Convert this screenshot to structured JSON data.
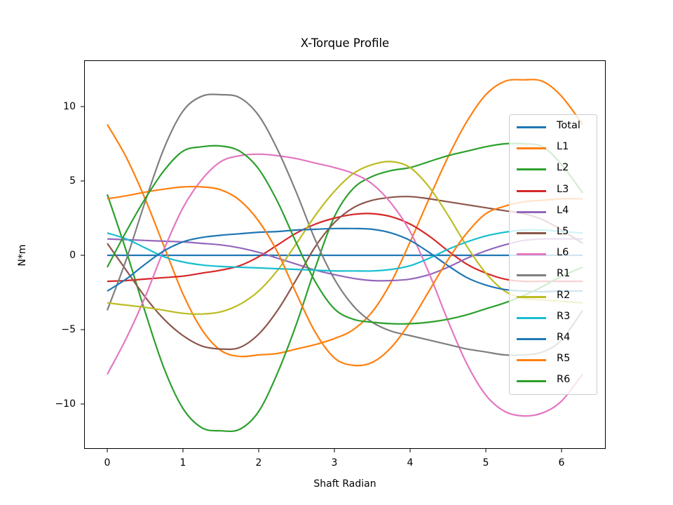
{
  "chart_data": {
    "type": "line",
    "title": "X-Torque Profile",
    "xlabel": "Shaft Radian",
    "ylabel": "N*m",
    "xlim": [
      -0.31,
      6.59
    ],
    "ylim": [
      -13.1,
      13.0
    ],
    "xticks": [
      0,
      1,
      2,
      3,
      4,
      5,
      6
    ],
    "xtick_labels": [
      "0",
      "1",
      "2",
      "3",
      "4",
      "5",
      "6"
    ],
    "yticks": [
      10,
      5,
      0,
      -5,
      -10
    ],
    "ytick_labels": [
      "10",
      "5",
      "0",
      "−5",
      "−10"
    ],
    "grid": false,
    "legend_position": "center right",
    "x": [
      0,
      0.25,
      0.5,
      0.75,
      1.0,
      1.25,
      1.5,
      1.75,
      2.0,
      2.25,
      2.5,
      2.75,
      3.0,
      3.25,
      3.5,
      3.75,
      4.0,
      4.25,
      4.5,
      4.75,
      5.0,
      5.25,
      5.5,
      5.75,
      6.0,
      6.28
    ],
    "series": [
      {
        "name": "Total",
        "color": "#1f77b4",
        "values": [
          0,
          0,
          0,
          0,
          0,
          0,
          0,
          0,
          0,
          0,
          0,
          0,
          0,
          0,
          0,
          0,
          0,
          0,
          0,
          0,
          0,
          0,
          0,
          0,
          0,
          0
        ]
      },
      {
        "name": "L1",
        "color": "#ff7f0e",
        "values": [
          8.8,
          6.6,
          3.8,
          0.6,
          -2.6,
          -5.0,
          -6.4,
          -6.8,
          -6.7,
          -6.6,
          -6.3,
          -6.0,
          -5.6,
          -5.0,
          -3.8,
          -1.8,
          0.9,
          3.8,
          6.6,
          9.0,
          10.8,
          11.7,
          11.8,
          11.7,
          10.7,
          8.8
        ]
      },
      {
        "name": "L2",
        "color": "#2ca02c",
        "values": [
          4.1,
          0.3,
          -3.8,
          -7.6,
          -10.3,
          -11.6,
          -11.8,
          -11.7,
          -10.5,
          -7.9,
          -4.6,
          -0.8,
          2.6,
          4.5,
          5.3,
          5.7,
          5.9,
          6.3,
          6.7,
          7.0,
          7.3,
          7.5,
          7.5,
          7.3,
          6.1,
          4.2
        ]
      },
      {
        "name": "L3",
        "color": "#d62728",
        "values": [
          -1.75,
          -1.7,
          -1.6,
          -1.5,
          -1.4,
          -1.2,
          -1.0,
          -0.7,
          -0.1,
          0.7,
          1.5,
          2.1,
          2.5,
          2.75,
          2.8,
          2.6,
          2.1,
          1.3,
          0.3,
          -0.6,
          -1.2,
          -1.6,
          -1.75,
          -1.75,
          -1.75,
          -1.75
        ]
      },
      {
        "name": "L4",
        "color": "#9467bd",
        "values": [
          1.1,
          1.05,
          1.0,
          0.95,
          0.9,
          0.8,
          0.7,
          0.5,
          0.2,
          -0.2,
          -0.6,
          -1.0,
          -1.3,
          -1.55,
          -1.7,
          -1.7,
          -1.6,
          -1.3,
          -0.8,
          -0.2,
          0.3,
          0.7,
          1.0,
          1.1,
          1.1,
          1.1
        ]
      },
      {
        "name": "L5",
        "color": "#8c564b",
        "values": [
          0.8,
          -1.0,
          -2.8,
          -4.3,
          -5.4,
          -6.1,
          -6.3,
          -6.2,
          -5.3,
          -3.7,
          -1.6,
          0.6,
          2.2,
          3.2,
          3.7,
          3.9,
          3.95,
          3.8,
          3.6,
          3.4,
          3.2,
          3.0,
          2.8,
          2.4,
          1.7,
          0.8
        ]
      },
      {
        "name": "L6",
        "color": "#e377c2",
        "values": [
          -8.0,
          -5.6,
          -2.8,
          0.4,
          3.2,
          5.1,
          6.3,
          6.7,
          6.8,
          6.7,
          6.5,
          6.2,
          5.9,
          5.5,
          4.8,
          3.5,
          1.6,
          -1.2,
          -4.4,
          -7.3,
          -9.4,
          -10.5,
          -10.8,
          -10.6,
          -9.8,
          -8.0
        ]
      },
      {
        "name": "R1",
        "color": "#7f7f7f",
        "values": [
          -3.7,
          -0.3,
          3.6,
          7.2,
          9.7,
          10.7,
          10.8,
          10.6,
          9.4,
          7.1,
          4.2,
          1.0,
          -1.6,
          -3.4,
          -4.5,
          -5.1,
          -5.4,
          -5.7,
          -6.0,
          -6.3,
          -6.5,
          -6.7,
          -6.7,
          -6.5,
          -5.7,
          -3.7
        ]
      },
      {
        "name": "R2",
        "color": "#bcbd22",
        "values": [
          -3.2,
          -3.35,
          -3.5,
          -3.7,
          -3.9,
          -3.95,
          -3.8,
          -3.3,
          -2.4,
          -1.0,
          0.8,
          2.7,
          4.3,
          5.5,
          6.1,
          6.3,
          5.9,
          4.6,
          2.7,
          0.6,
          -1.2,
          -2.4,
          -2.9,
          -3.0,
          -3.1,
          -3.2
        ]
      },
      {
        "name": "R3",
        "color": "#17becf",
        "values": [
          1.5,
          1.1,
          0.5,
          -0.1,
          -0.45,
          -0.65,
          -0.75,
          -0.8,
          -0.85,
          -0.9,
          -0.95,
          -1.0,
          -1.05,
          -1.05,
          -1.05,
          -0.95,
          -0.7,
          -0.2,
          0.4,
          0.9,
          1.3,
          1.55,
          1.7,
          1.7,
          1.6,
          1.5
        ]
      },
      {
        "name": "R4",
        "color": "#1f77b4",
        "values": [
          -2.4,
          -1.6,
          -0.6,
          0.3,
          0.9,
          1.2,
          1.35,
          1.45,
          1.55,
          1.6,
          1.7,
          1.75,
          1.8,
          1.8,
          1.75,
          1.5,
          1.0,
          0.2,
          -0.7,
          -1.5,
          -2.0,
          -2.3,
          -2.4,
          -2.45,
          -2.4,
          -2.4
        ]
      },
      {
        "name": "R5",
        "color": "#ff7f0e",
        "values": [
          3.8,
          4.0,
          4.25,
          4.45,
          4.6,
          4.6,
          4.4,
          3.7,
          2.3,
          0.2,
          -2.6,
          -5.2,
          -6.9,
          -7.4,
          -7.2,
          -6.2,
          -4.5,
          -2.4,
          -0.3,
          1.5,
          2.8,
          3.3,
          3.6,
          3.7,
          3.8,
          3.8
        ]
      },
      {
        "name": "R6",
        "color": "#2ca02c",
        "values": [
          -0.8,
          1.6,
          3.8,
          5.7,
          7.0,
          7.3,
          7.35,
          7.0,
          5.8,
          3.6,
          0.8,
          -1.8,
          -3.6,
          -4.3,
          -4.5,
          -4.6,
          -4.6,
          -4.5,
          -4.3,
          -4.0,
          -3.6,
          -3.2,
          -2.7,
          -2.1,
          -1.4,
          -0.8
        ]
      }
    ]
  },
  "legend": {
    "items": [
      "Total",
      "L1",
      "L2",
      "L3",
      "L4",
      "L5",
      "L6",
      "R1",
      "R2",
      "R3",
      "R4",
      "R5",
      "R6"
    ]
  }
}
